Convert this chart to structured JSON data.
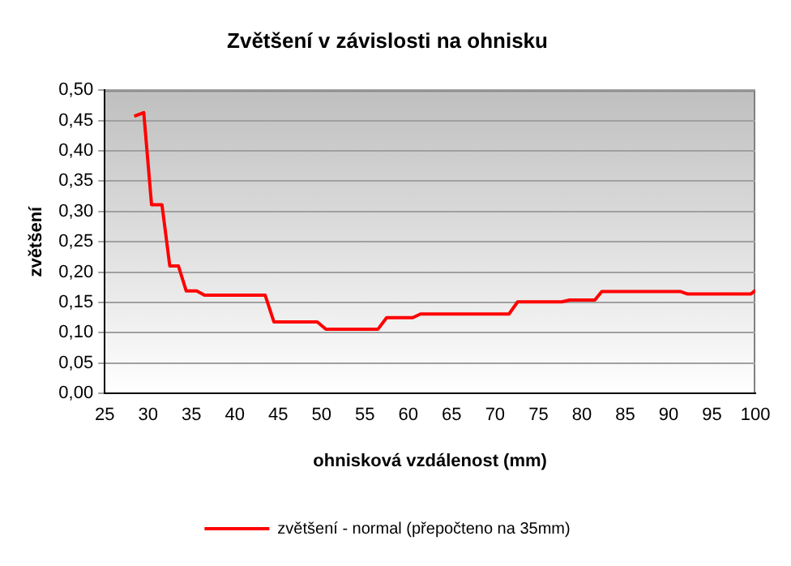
{
  "chart_data": {
    "type": "line",
    "title": "Zvětšení v závislosti na ohnisku",
    "xlabel": "ohnisková vzdálenost (mm)",
    "ylabel": "zvětšení",
    "xlim": [
      25,
      100
    ],
    "xticks": [
      25,
      30,
      35,
      40,
      45,
      50,
      55,
      60,
      65,
      70,
      75,
      80,
      85,
      90,
      95,
      100
    ],
    "ylim": [
      0,
      0.5
    ],
    "yticks": [
      {
        "value": 0,
        "label": "0,00"
      },
      {
        "value": 0.05,
        "label": "0,05"
      },
      {
        "value": 0.1,
        "label": "0,10"
      },
      {
        "value": 0.15,
        "label": "0,15"
      },
      {
        "value": 0.2,
        "label": "0,20"
      },
      {
        "value": 0.25,
        "label": "0,25"
      },
      {
        "value": 0.3,
        "label": "0,30"
      },
      {
        "value": 0.35,
        "label": "0,35"
      },
      {
        "value": 0.4,
        "label": "0,40"
      },
      {
        "value": 0.45,
        "label": "0,45"
      },
      {
        "value": 0.5,
        "label": "0,50"
      }
    ],
    "grid": "y",
    "legend": "bottom",
    "marker": "none",
    "line_style": "solid",
    "series": [
      {
        "name": "zvětšení - normal (přepočteno na 35mm)",
        "color": "#ff0000",
        "x": [
          28.4,
          29.5,
          30.4,
          31.6,
          32.5,
          33.5,
          34.4,
          35.6,
          36.5,
          43.5,
          44.5,
          49.5,
          50.5,
          56.5,
          57.5,
          60.5,
          61.4,
          71.6,
          72.6,
          77.7,
          78.6,
          81.5,
          82.3,
          91.4,
          92.2,
          99.5,
          100
        ],
        "values": [
          0.457,
          0.463,
          0.311,
          0.311,
          0.21,
          0.21,
          0.169,
          0.169,
          0.162,
          0.162,
          0.118,
          0.118,
          0.106,
          0.106,
          0.125,
          0.125,
          0.131,
          0.131,
          0.151,
          0.151,
          0.154,
          0.154,
          0.168,
          0.168,
          0.164,
          0.164,
          0.17
        ]
      }
    ]
  }
}
